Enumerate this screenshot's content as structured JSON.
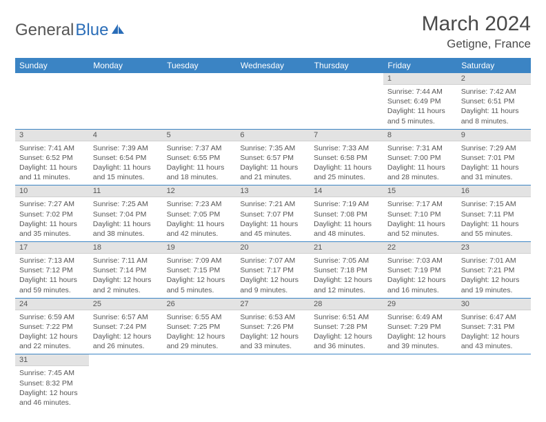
{
  "logo": {
    "textA": "General",
    "textB": "Blue"
  },
  "title": {
    "month": "March 2024",
    "location": "Getigne, France"
  },
  "colors": {
    "header_bg": "#3b84c4",
    "header_text": "#ffffff",
    "daynum_bg": "#e3e3e3",
    "cell_border": "#3b84c4",
    "body_text": "#555555",
    "logo_blue": "#2a6db8"
  },
  "weekdays": [
    "Sunday",
    "Monday",
    "Tuesday",
    "Wednesday",
    "Thursday",
    "Friday",
    "Saturday"
  ],
  "weeks": [
    [
      null,
      null,
      null,
      null,
      null,
      {
        "n": "1",
        "sunrise": "Sunrise: 7:44 AM",
        "sunset": "Sunset: 6:49 PM",
        "daylight": "Daylight: 11 hours and 5 minutes."
      },
      {
        "n": "2",
        "sunrise": "Sunrise: 7:42 AM",
        "sunset": "Sunset: 6:51 PM",
        "daylight": "Daylight: 11 hours and 8 minutes."
      }
    ],
    [
      {
        "n": "3",
        "sunrise": "Sunrise: 7:41 AM",
        "sunset": "Sunset: 6:52 PM",
        "daylight": "Daylight: 11 hours and 11 minutes."
      },
      {
        "n": "4",
        "sunrise": "Sunrise: 7:39 AM",
        "sunset": "Sunset: 6:54 PM",
        "daylight": "Daylight: 11 hours and 15 minutes."
      },
      {
        "n": "5",
        "sunrise": "Sunrise: 7:37 AM",
        "sunset": "Sunset: 6:55 PM",
        "daylight": "Daylight: 11 hours and 18 minutes."
      },
      {
        "n": "6",
        "sunrise": "Sunrise: 7:35 AM",
        "sunset": "Sunset: 6:57 PM",
        "daylight": "Daylight: 11 hours and 21 minutes."
      },
      {
        "n": "7",
        "sunrise": "Sunrise: 7:33 AM",
        "sunset": "Sunset: 6:58 PM",
        "daylight": "Daylight: 11 hours and 25 minutes."
      },
      {
        "n": "8",
        "sunrise": "Sunrise: 7:31 AM",
        "sunset": "Sunset: 7:00 PM",
        "daylight": "Daylight: 11 hours and 28 minutes."
      },
      {
        "n": "9",
        "sunrise": "Sunrise: 7:29 AM",
        "sunset": "Sunset: 7:01 PM",
        "daylight": "Daylight: 11 hours and 31 minutes."
      }
    ],
    [
      {
        "n": "10",
        "sunrise": "Sunrise: 7:27 AM",
        "sunset": "Sunset: 7:02 PM",
        "daylight": "Daylight: 11 hours and 35 minutes."
      },
      {
        "n": "11",
        "sunrise": "Sunrise: 7:25 AM",
        "sunset": "Sunset: 7:04 PM",
        "daylight": "Daylight: 11 hours and 38 minutes."
      },
      {
        "n": "12",
        "sunrise": "Sunrise: 7:23 AM",
        "sunset": "Sunset: 7:05 PM",
        "daylight": "Daylight: 11 hours and 42 minutes."
      },
      {
        "n": "13",
        "sunrise": "Sunrise: 7:21 AM",
        "sunset": "Sunset: 7:07 PM",
        "daylight": "Daylight: 11 hours and 45 minutes."
      },
      {
        "n": "14",
        "sunrise": "Sunrise: 7:19 AM",
        "sunset": "Sunset: 7:08 PM",
        "daylight": "Daylight: 11 hours and 48 minutes."
      },
      {
        "n": "15",
        "sunrise": "Sunrise: 7:17 AM",
        "sunset": "Sunset: 7:10 PM",
        "daylight": "Daylight: 11 hours and 52 minutes."
      },
      {
        "n": "16",
        "sunrise": "Sunrise: 7:15 AM",
        "sunset": "Sunset: 7:11 PM",
        "daylight": "Daylight: 11 hours and 55 minutes."
      }
    ],
    [
      {
        "n": "17",
        "sunrise": "Sunrise: 7:13 AM",
        "sunset": "Sunset: 7:12 PM",
        "daylight": "Daylight: 11 hours and 59 minutes."
      },
      {
        "n": "18",
        "sunrise": "Sunrise: 7:11 AM",
        "sunset": "Sunset: 7:14 PM",
        "daylight": "Daylight: 12 hours and 2 minutes."
      },
      {
        "n": "19",
        "sunrise": "Sunrise: 7:09 AM",
        "sunset": "Sunset: 7:15 PM",
        "daylight": "Daylight: 12 hours and 5 minutes."
      },
      {
        "n": "20",
        "sunrise": "Sunrise: 7:07 AM",
        "sunset": "Sunset: 7:17 PM",
        "daylight": "Daylight: 12 hours and 9 minutes."
      },
      {
        "n": "21",
        "sunrise": "Sunrise: 7:05 AM",
        "sunset": "Sunset: 7:18 PM",
        "daylight": "Daylight: 12 hours and 12 minutes."
      },
      {
        "n": "22",
        "sunrise": "Sunrise: 7:03 AM",
        "sunset": "Sunset: 7:19 PM",
        "daylight": "Daylight: 12 hours and 16 minutes."
      },
      {
        "n": "23",
        "sunrise": "Sunrise: 7:01 AM",
        "sunset": "Sunset: 7:21 PM",
        "daylight": "Daylight: 12 hours and 19 minutes."
      }
    ],
    [
      {
        "n": "24",
        "sunrise": "Sunrise: 6:59 AM",
        "sunset": "Sunset: 7:22 PM",
        "daylight": "Daylight: 12 hours and 22 minutes."
      },
      {
        "n": "25",
        "sunrise": "Sunrise: 6:57 AM",
        "sunset": "Sunset: 7:24 PM",
        "daylight": "Daylight: 12 hours and 26 minutes."
      },
      {
        "n": "26",
        "sunrise": "Sunrise: 6:55 AM",
        "sunset": "Sunset: 7:25 PM",
        "daylight": "Daylight: 12 hours and 29 minutes."
      },
      {
        "n": "27",
        "sunrise": "Sunrise: 6:53 AM",
        "sunset": "Sunset: 7:26 PM",
        "daylight": "Daylight: 12 hours and 33 minutes."
      },
      {
        "n": "28",
        "sunrise": "Sunrise: 6:51 AM",
        "sunset": "Sunset: 7:28 PM",
        "daylight": "Daylight: 12 hours and 36 minutes."
      },
      {
        "n": "29",
        "sunrise": "Sunrise: 6:49 AM",
        "sunset": "Sunset: 7:29 PM",
        "daylight": "Daylight: 12 hours and 39 minutes."
      },
      {
        "n": "30",
        "sunrise": "Sunrise: 6:47 AM",
        "sunset": "Sunset: 7:31 PM",
        "daylight": "Daylight: 12 hours and 43 minutes."
      }
    ],
    [
      {
        "n": "31",
        "sunrise": "Sunrise: 7:45 AM",
        "sunset": "Sunset: 8:32 PM",
        "daylight": "Daylight: 12 hours and 46 minutes."
      },
      null,
      null,
      null,
      null,
      null,
      null
    ]
  ]
}
